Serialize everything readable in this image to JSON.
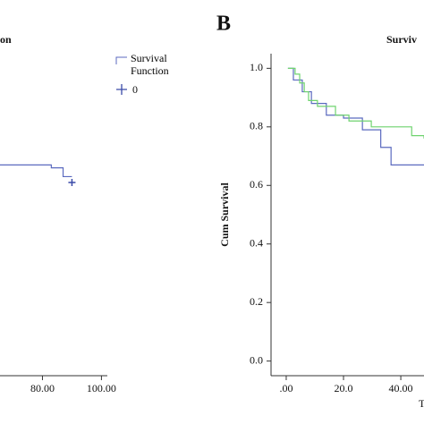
{
  "chart_data": [
    {
      "type": "line",
      "step": "post",
      "title": "on",
      "xlim": [
        65,
        102
      ],
      "ylim": [
        -0.05,
        1.05
      ],
      "xticks": [
        {
          "value": 80,
          "label": "80.00"
        },
        {
          "value": 100,
          "label": "100.00"
        }
      ],
      "series": [
        {
          "name": "Survival Function",
          "color": "#5b6abf",
          "x": [
            65,
            75,
            83,
            87,
            90
          ],
          "values": [
            0.67,
            0.67,
            0.66,
            0.63,
            0.63
          ]
        },
        {
          "name": "0",
          "color": "#3a4aa8",
          "marker": "censor",
          "x": [
            90
          ],
          "values": [
            0.61
          ]
        }
      ]
    },
    {
      "type": "line",
      "step": "post",
      "panel_label": "B",
      "title": "Surviv",
      "ylabel": "Cum Survival",
      "xlabel": "T",
      "xlim": [
        -5.3,
        48.1
      ],
      "ylim": [
        -0.05,
        1.05
      ],
      "xticks": [
        {
          "value": 0,
          "label": ".00"
        },
        {
          "value": 20,
          "label": "20.0"
        },
        {
          "value": 40,
          "label": "40.00"
        }
      ],
      "yticks": [
        {
          "value": 0,
          "label": "0.0"
        },
        0.2,
        0.4,
        0.6,
        0.8,
        {
          "value": 1,
          "label": "1.0"
        }
      ],
      "series": [
        {
          "color": "#5b6abf",
          "x": [
            0.6,
            2.5,
            5.6,
            8.8,
            14,
            20,
            26.6,
            33,
            36.6,
            48.1
          ],
          "values": [
            1.0,
            0.96,
            0.92,
            0.88,
            0.84,
            0.83,
            0.79,
            0.73,
            0.67,
            0.67
          ]
        },
        {
          "color": "#6fd36f",
          "x": [
            0.6,
            3.1,
            4.7,
            6.3,
            7.8,
            10.9,
            17.2,
            21.9,
            29.7,
            32.8,
            43.8,
            48.1
          ],
          "values": [
            1.0,
            0.98,
            0.95,
            0.92,
            0.89,
            0.87,
            0.84,
            0.82,
            0.8,
            0.8,
            0.77,
            0.76
          ]
        }
      ]
    }
  ]
}
